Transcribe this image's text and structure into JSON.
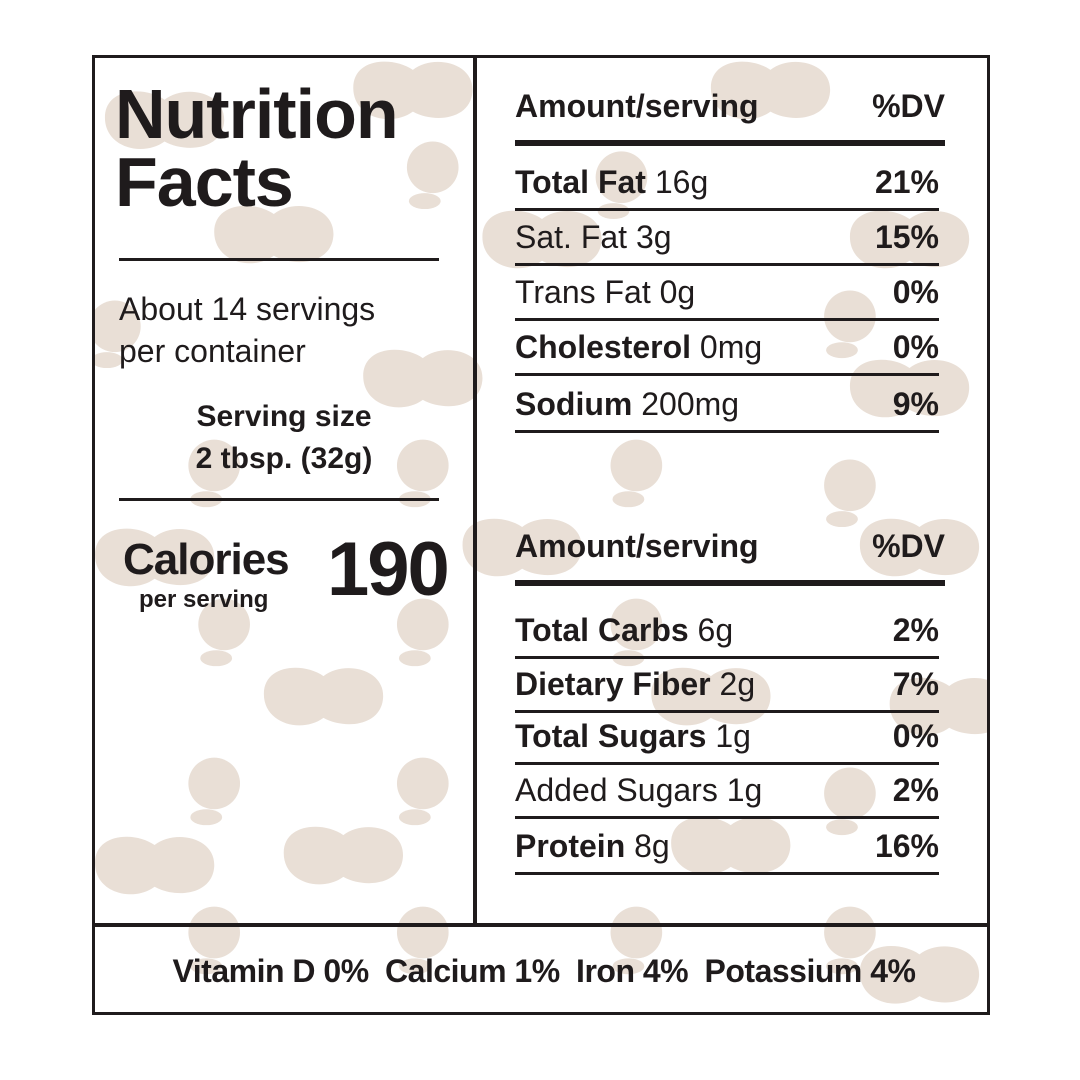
{
  "title": {
    "line1": "Nutrition",
    "line2": "Facts"
  },
  "servings": {
    "line1": "About 14 servings",
    "line2": "per container"
  },
  "serving_size": {
    "label": "Serving size",
    "value": "2 tbsp. (32g)"
  },
  "calories": {
    "label": "Calories",
    "sub": "per serving",
    "value": "190"
  },
  "table1": {
    "header_left": "Amount/serving",
    "header_right": "%DV",
    "rows": [
      {
        "name": "Total Fat",
        "amount": "16g",
        "dv": "21%",
        "bold": true
      },
      {
        "name": "Sat. Fat",
        "amount": "3g",
        "dv": "15%",
        "bold": false
      },
      {
        "name": "Trans Fat",
        "amount": "0g",
        "dv": "0%",
        "bold": false
      },
      {
        "name": "Cholesterol",
        "amount": "0mg",
        "dv": "0%",
        "bold": true
      },
      {
        "name": "Sodium",
        "amount": "200mg",
        "dv": "9%",
        "bold": true
      }
    ]
  },
  "table2": {
    "header_left": "Amount/serving",
    "header_right": "%DV",
    "rows": [
      {
        "name": "Total Carbs",
        "amount": "6g",
        "dv": "2%",
        "bold": true
      },
      {
        "name": "Dietary Fiber",
        "amount": "2g",
        "dv": "7%",
        "bold": true
      },
      {
        "name": "Total Sugars",
        "amount": "1g",
        "dv": "0%",
        "bold": true
      },
      {
        "name": "Added Sugars",
        "amount": "1g",
        "dv": "2%",
        "bold": false
      },
      {
        "name": "Protein",
        "amount": "8g",
        "dv": "16%",
        "bold": true
      }
    ]
  },
  "vitamins": [
    "Vitamin D 0%",
    "Calcium 1%",
    "Iron 4%",
    "Potassium 4%"
  ],
  "colors": {
    "ink": "#1f1b1c",
    "pattern": "#e9dfd6",
    "background": "#ffffff"
  }
}
